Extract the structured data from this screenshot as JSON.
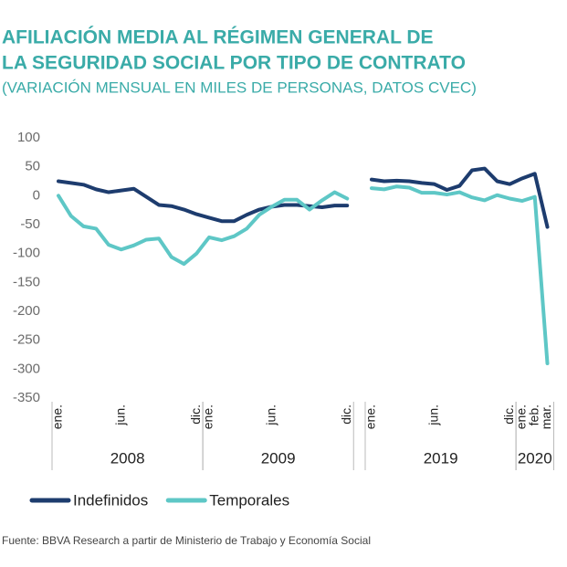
{
  "chart_data": {
    "type": "line",
    "title": [
      "AFILIACIÓN MEDIA AL RÉGIMEN GENERAL DE",
      "LA SEGURIDAD SOCIAL POR TIPO DE CONTRATO"
    ],
    "subtitle": "(VARIACIÓN MENSUAL EN MILES DE PERSONAS, DATOS CVEC)",
    "groups": [
      {
        "name": "2008",
        "categories": [
          "ene.",
          null,
          null,
          null,
          null,
          "jun.",
          null,
          null,
          null,
          null,
          null,
          "dic."
        ]
      },
      {
        "name": "2009",
        "categories": [
          "ene.",
          null,
          null,
          null,
          null,
          "jun.",
          null,
          null,
          null,
          null,
          null,
          "dic."
        ]
      },
      {
        "name": "2019",
        "categories": [
          "ene.",
          null,
          null,
          null,
          null,
          "jun.",
          null,
          null,
          null,
          null,
          null,
          "dic."
        ]
      },
      {
        "name": "2020",
        "categories": [
          "ene.",
          "feb.",
          "mar."
        ]
      }
    ],
    "series": [
      {
        "name": "Indefinidos",
        "color": "#1d3c6e",
        "values": [
          25,
          22,
          19,
          11,
          6,
          9,
          12,
          -2,
          -16,
          -18,
          -24,
          -32,
          -38,
          -44,
          -44,
          -33,
          -24,
          -19,
          -16,
          -16,
          -18,
          -20,
          -17,
          -17,
          28,
          25,
          26,
          25,
          22,
          20,
          10,
          17,
          44,
          47,
          25,
          20,
          30,
          38,
          -54
        ]
      },
      {
        "name": "Temporales",
        "color": "#5ec7c6",
        "values": [
          0,
          -35,
          -53,
          -57,
          -85,
          -93,
          -86,
          -76,
          -74,
          -106,
          -118,
          -100,
          -72,
          -77,
          -70,
          -57,
          -33,
          -19,
          -7,
          -7,
          -24,
          -8,
          6,
          -5,
          13,
          11,
          16,
          14,
          5,
          5,
          2,
          6,
          -3,
          -8,
          1,
          -5,
          -9,
          -2,
          -290
        ]
      }
    ],
    "ylim": [
      -350,
      100
    ],
    "yticks": [
      100,
      50,
      0,
      -50,
      -100,
      -150,
      -200,
      -250,
      -300,
      -350
    ],
    "legend": "bottom-left",
    "source": "Fuente: BBVA Research a partir de Ministerio de Trabajo y Economía Social"
  }
}
